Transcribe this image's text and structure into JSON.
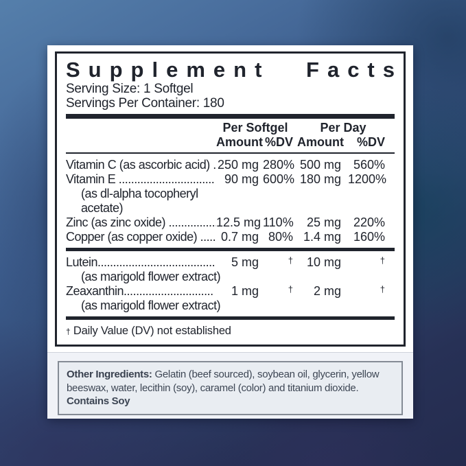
{
  "supplement_facts": {
    "title_words": [
      "Supplement",
      "Facts"
    ],
    "serving_size": "Serving Size: 1 Softgel",
    "servings_per_container": "Servings Per Container: 180",
    "header": {
      "per_softgel": "Per Softgel",
      "per_day": "Per Day",
      "amount": "Amount",
      "dv": "%DV"
    },
    "sections": [
      {
        "rows": [
          {
            "name": "Vitamin C (as ascorbic acid) ..",
            "amount_per_softgel": "250 mg",
            "dv_per_softgel": "280%",
            "amount_per_day": "500 mg",
            "dv_per_day": "560%"
          },
          {
            "name": "Vitamin E ...............................",
            "amount_per_softgel": "90 mg",
            "dv_per_softgel": "600%",
            "amount_per_day": "180 mg",
            "dv_per_day": "1200%",
            "subtext": "(as dl-alpha tocopheryl acetate)"
          },
          {
            "name": "Zinc (as zinc oxide) ................",
            "amount_per_softgel": "12.5 mg",
            "dv_per_softgel": "110%",
            "amount_per_day": "25 mg",
            "dv_per_day": "220%"
          },
          {
            "name": "Copper (as copper oxide) ......",
            "amount_per_softgel": "0.7 mg",
            "dv_per_softgel": "80%",
            "amount_per_day": "1.4 mg",
            "dv_per_day": "160%"
          }
        ]
      },
      {
        "rows": [
          {
            "name": "Lutein......................................",
            "amount_per_softgel": "5 mg",
            "dv_per_softgel": "†",
            "amount_per_day": "10 mg",
            "dv_per_day": "†",
            "subtext": "(as marigold flower extract)"
          },
          {
            "name": "Zeaxanthin.............................",
            "amount_per_softgel": "1 mg",
            "dv_per_softgel": "†",
            "amount_per_day": "2 mg",
            "dv_per_day": "†",
            "subtext": "(as marigold flower extract)"
          }
        ]
      }
    ],
    "footnote_symbol": "†",
    "footnote_text": "Daily Value (DV) not established"
  },
  "other_ingredients": {
    "label": "Other Ingredients:",
    "text": "Gelatin (beef sourced), soybean oil, glycerin, yellow beeswax, water, lecithin (soy), caramel (color) and titanium dioxide.",
    "contains": "Contains Soy"
  },
  "colors": {
    "ink": "#20242d",
    "panel_bg": "#ffffff",
    "other_ingredients_bg": "#e9edf2",
    "other_ingredients_border": "#848b95",
    "other_ingredients_text": "#3d4654",
    "background_top_left": "#557fab",
    "background_bottom": "#242b4e"
  }
}
